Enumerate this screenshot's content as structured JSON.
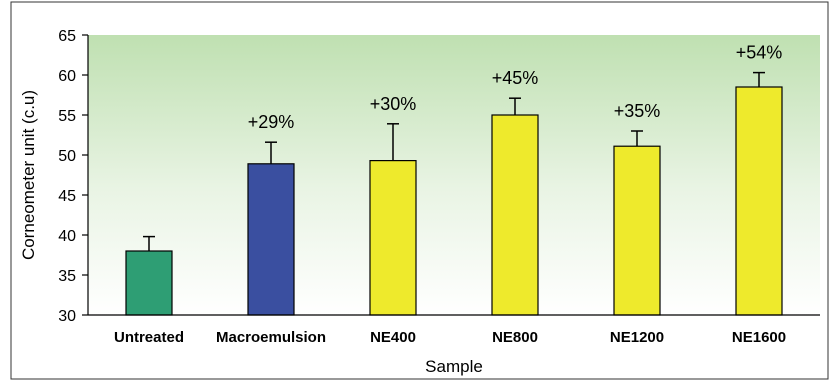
{
  "chart_data": {
    "type": "bar",
    "title": "",
    "xlabel": "Sample",
    "ylabel": "Corneometer unit (c.u)",
    "ylim": [
      30,
      65
    ],
    "yticks": [
      30,
      35,
      40,
      45,
      50,
      55,
      60,
      65
    ],
    "grid": false,
    "background": "gradient-green-to-white",
    "categories": [
      "Untreated",
      "Macroemulsion",
      "NE400",
      "NE800",
      "NE1200",
      "NE1600"
    ],
    "values": [
      38.0,
      48.9,
      49.3,
      55.0,
      51.1,
      58.5
    ],
    "errors": [
      1.8,
      2.7,
      4.6,
      2.1,
      1.9,
      1.8
    ],
    "annotations": [
      "",
      "+29%",
      "+30%",
      "+45%",
      "+35%",
      "+54%"
    ],
    "colors": [
      "#2e9e74",
      "#3a4fa0",
      "#eeea2c",
      "#eeea2c",
      "#eeea2c",
      "#eeea2c"
    ]
  }
}
